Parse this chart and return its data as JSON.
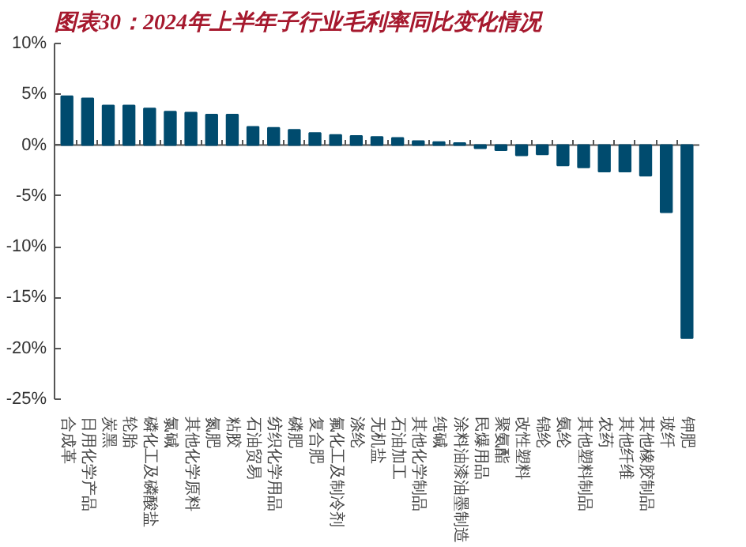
{
  "chart_data": {
    "type": "bar",
    "title": "图表30：2024年上半年子行业毛利率同比变化情况",
    "categories": [
      "合成革",
      "日用化学产品",
      "炭黑",
      "轮胎",
      "磷化工及磷酸盐",
      "氯碱",
      "其他化学原料",
      "氮肥",
      "粘胶",
      "石油贸易",
      "纺织化学用品",
      "磷肥",
      "复合肥",
      "氟化工及制冷剂",
      "涤纶",
      "无机盐",
      "石油加工",
      "其他化学制品",
      "纯碱",
      "涂料油漆油墨制造",
      "民爆用品",
      "聚氨酯",
      "改性塑料",
      "锦纶",
      "氨纶",
      "其他塑料制品",
      "农药",
      "其他纤维",
      "其他橡胶制品",
      "玻纤",
      "钾肥"
    ],
    "series": [
      {
        "color": "#004b6e",
        "values": [
          4.8,
          4.6,
          3.9,
          3.9,
          3.6,
          3.3,
          3.2,
          3.0,
          3.0,
          1.8,
          1.7,
          1.5,
          1.2,
          1.0,
          0.9,
          0.8,
          0.7,
          0.4,
          0.3,
          0.2,
          -0.3,
          -0.5,
          -1.0,
          -0.9,
          -2.0,
          -2.2,
          -2.6,
          -2.6,
          -3.0,
          -6.6,
          -19.0
        ]
      }
    ],
    "ylim": [
      -25,
      10
    ],
    "yticks": [
      {
        "value": -25,
        "label": "-25%"
      },
      {
        "value": -20,
        "label": "-20%"
      },
      {
        "value": -15,
        "label": "-15%"
      },
      {
        "value": -10,
        "label": "-10%"
      },
      {
        "value": -5,
        "label": "-5%"
      },
      {
        "value": 0,
        "label": "0%"
      },
      {
        "value": 5,
        "label": "5%"
      },
      {
        "value": 10,
        "label": "10%"
      }
    ],
    "ref_lines": [
      {
        "axis": "y",
        "value": 0,
        "color": "#555555"
      }
    ],
    "grid": false
  }
}
